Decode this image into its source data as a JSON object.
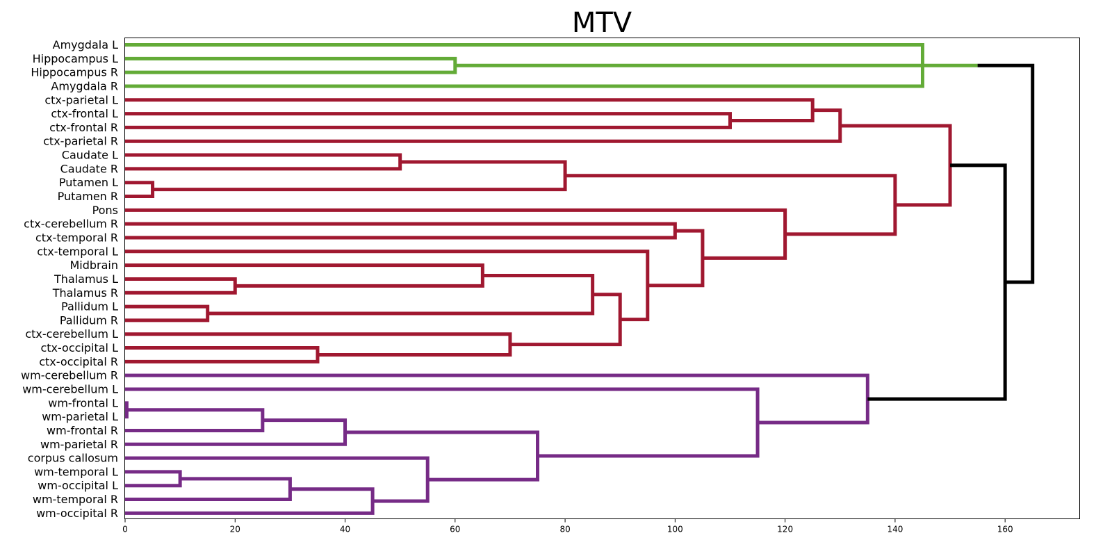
{
  "chart_data": {
    "type": "dendrogram",
    "title": "MTV",
    "orientation": "horizontal",
    "xlim": [
      0,
      173.5
    ],
    "x_ticks": [
      0,
      20,
      40,
      60,
      80,
      100,
      120,
      140,
      160
    ],
    "x_tick_labels": [
      "0",
      "20",
      "40",
      "60",
      "80",
      "100",
      "120",
      "140",
      "160"
    ],
    "leaves": [
      "Amygdala L",
      "Hippocampus L",
      "Hippocampus R",
      "Amygdala R",
      "ctx-parietal L",
      "ctx-frontal L",
      "ctx-frontal R",
      "ctx-parietal R",
      "Caudate L",
      "Caudate R",
      "Putamen L",
      "Putamen R",
      "Pons",
      "ctx-cerebellum R",
      "ctx-temporal R",
      "ctx-temporal L",
      "Midbrain",
      "Thalamus L",
      "Thalamus R",
      "Pallidum L",
      "Pallidum R",
      "ctx-cerebellum L",
      "ctx-occipital L",
      "ctx-occipital R",
      "wm-cerebellum R",
      "wm-cerebellum L",
      "wm-frontal L",
      "wm-parietal L",
      "wm-frontal R",
      "wm-parietal R",
      "corpus callosum",
      "wm-temporal L",
      "wm-occipital L",
      "wm-temporal R",
      "wm-occipital R"
    ],
    "cluster_colors": {
      "green": "#63ab37",
      "red": "#a01830",
      "purple": "#762b86",
      "above": "#000000"
    },
    "merges": [
      {
        "a": 1,
        "b": 2,
        "height": 60,
        "cluster": "green"
      },
      {
        "a": 0,
        "b": 3,
        "height": 145,
        "cluster": "green"
      },
      {
        "a": 0,
        "b": 1,
        "height": 155,
        "cluster": "green"
      },
      {
        "a": 5,
        "b": 6,
        "height": 110,
        "cluster": "red"
      },
      {
        "a": 4,
        "b": 5,
        "height": 125,
        "cluster": "red"
      },
      {
        "a": 4,
        "b": 7,
        "height": 130,
        "cluster": "red"
      },
      {
        "a": 8,
        "b": 9,
        "height": 50,
        "cluster": "red"
      },
      {
        "a": 10,
        "b": 11,
        "height": 5,
        "cluster": "red"
      },
      {
        "a": 8,
        "b": 10,
        "height": 80,
        "cluster": "red"
      },
      {
        "a": 13,
        "b": 14,
        "height": 100,
        "cluster": "red"
      },
      {
        "a": 17,
        "b": 18,
        "height": 20,
        "cluster": "red"
      },
      {
        "a": 16,
        "b": 17,
        "height": 65,
        "cluster": "red"
      },
      {
        "a": 19,
        "b": 20,
        "height": 15,
        "cluster": "red"
      },
      {
        "a": 16,
        "b": 19,
        "height": 85,
        "cluster": "red"
      },
      {
        "a": 22,
        "b": 23,
        "height": 35,
        "cluster": "red"
      },
      {
        "a": 21,
        "b": 22,
        "height": 70,
        "cluster": "red"
      },
      {
        "a": 16,
        "b": 21,
        "height": 90,
        "cluster": "red"
      },
      {
        "a": 15,
        "b": 16,
        "height": 95,
        "cluster": "red"
      },
      {
        "a": 13,
        "b": 15,
        "height": 105,
        "cluster": "red"
      },
      {
        "a": 12,
        "b": 13,
        "height": 120,
        "cluster": "red"
      },
      {
        "a": 8,
        "b": 12,
        "height": 140,
        "cluster": "red"
      },
      {
        "a": 4,
        "b": 8,
        "height": 150,
        "cluster": "red"
      },
      {
        "a": 26,
        "b": 27,
        "height": 0.3,
        "cluster": "purple"
      },
      {
        "a": 26,
        "b": 28,
        "height": 25,
        "cluster": "purple"
      },
      {
        "a": 26,
        "b": 29,
        "height": 40,
        "cluster": "purple"
      },
      {
        "a": 31,
        "b": 32,
        "height": 10,
        "cluster": "purple"
      },
      {
        "a": 31,
        "b": 33,
        "height": 30,
        "cluster": "purple"
      },
      {
        "a": 31,
        "b": 34,
        "height": 45,
        "cluster": "purple"
      },
      {
        "a": 30,
        "b": 31,
        "height": 55,
        "cluster": "purple"
      },
      {
        "a": 26,
        "b": 30,
        "height": 75,
        "cluster": "purple"
      },
      {
        "a": 25,
        "b": 26,
        "height": 115,
        "cluster": "purple"
      },
      {
        "a": 24,
        "b": 25,
        "height": 135,
        "cluster": "purple"
      },
      {
        "a": 4,
        "b": 24,
        "height": 160,
        "cluster": "above"
      },
      {
        "a": 0,
        "b": 4,
        "height": 165,
        "cluster": "above"
      }
    ]
  }
}
